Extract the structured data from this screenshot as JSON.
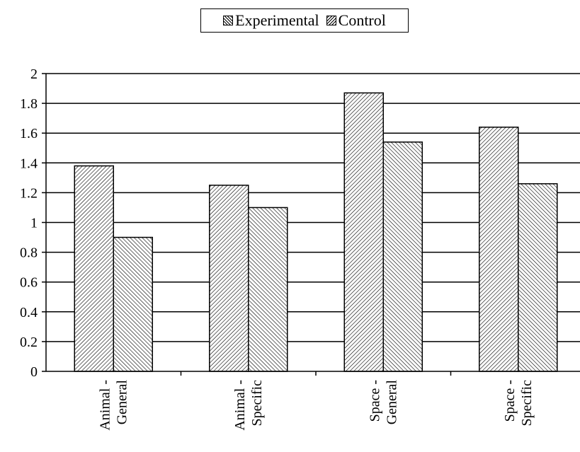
{
  "chart_data": {
    "type": "bar",
    "categories": [
      [
        "Animal -",
        "General"
      ],
      [
        "Animal -",
        "Specific"
      ],
      [
        "Space -",
        "General"
      ],
      [
        "Space -",
        "Specific"
      ]
    ],
    "series": [
      {
        "name": "Experimental",
        "values": [
          1.38,
          1.25,
          1.87,
          1.64
        ],
        "pattern": "hatch-up"
      },
      {
        "name": "Control",
        "values": [
          0.9,
          1.1,
          1.54,
          1.26
        ],
        "pattern": "hatch-down"
      }
    ],
    "ylim": [
      0,
      2
    ],
    "yticks": [
      0,
      0.2,
      0.4,
      0.6,
      0.8,
      1,
      1.2,
      1.4,
      1.6,
      1.8,
      2
    ],
    "ytick_labels": [
      "0",
      "0.2",
      "0.4",
      "0.6",
      "0.8",
      "1",
      "1.2",
      "1.4",
      "1.6",
      "1.8",
      "2"
    ],
    "grid": "horizontal",
    "legend": "top-center",
    "title": "",
    "xlabel": "",
    "ylabel": ""
  }
}
